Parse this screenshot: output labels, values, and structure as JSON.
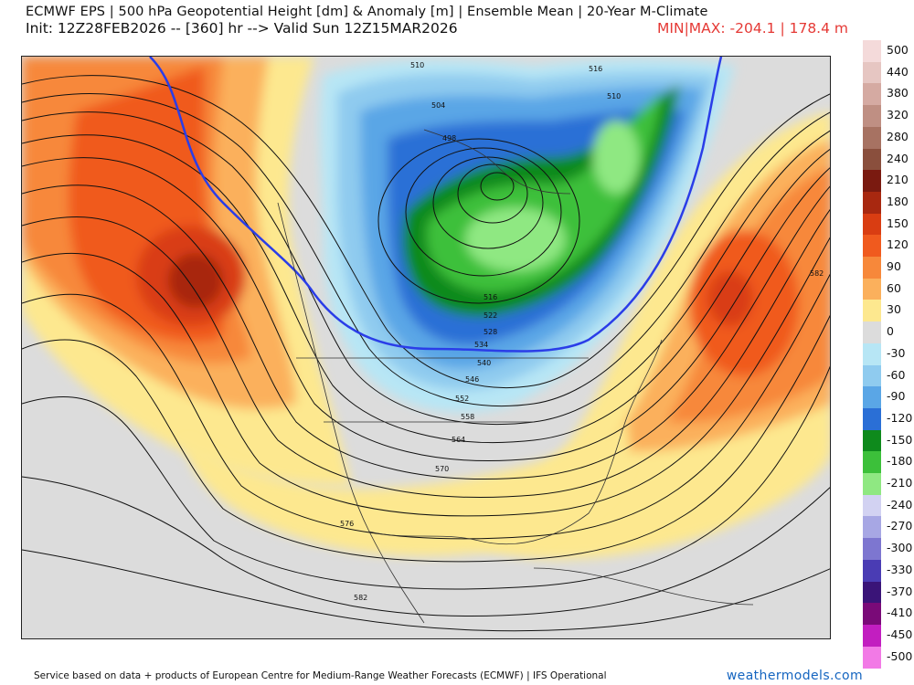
{
  "header": {
    "line1": "ECMWF EPS | 500 hPa Geopotential Height [dm] & Anomaly [m] | Ensemble Mean | 20-Year M-Climate",
    "line2": "Init: 12Z28FEB2026 -- [360] hr --> Valid Sun 12Z15MAR2026",
    "minmax": "MIN|MAX: -204.1 | 178.4 m"
  },
  "legend": {
    "levels": [
      {
        "label": "500",
        "color": "#f4dada"
      },
      {
        "label": "440",
        "color": "#e6c6c2"
      },
      {
        "label": "380",
        "color": "#d5aaa2"
      },
      {
        "label": "320",
        "color": "#bf8f83"
      },
      {
        "label": "280",
        "color": "#a77262"
      },
      {
        "label": "240",
        "color": "#8a4f3d"
      },
      {
        "label": "210",
        "color": "#7a1a10"
      },
      {
        "label": "180",
        "color": "#a82810"
      },
      {
        "label": "150",
        "color": "#d93d12"
      },
      {
        "label": "120",
        "color": "#f05a1e"
      },
      {
        "label": "90",
        "color": "#f7883a"
      },
      {
        "label": "60",
        "color": "#fbb05c"
      },
      {
        "label": "30",
        "color": "#fde88f"
      },
      {
        "label": "0",
        "color": "#dcdcdc"
      },
      {
        "label": "-30",
        "color": "#b7e6f5"
      },
      {
        "label": "-60",
        "color": "#8fcbef"
      },
      {
        "label": "-90",
        "color": "#5aa6e6"
      },
      {
        "label": "-120",
        "color": "#2a6fd6"
      },
      {
        "label": "-150",
        "color": "#0e8a1c"
      },
      {
        "label": "-180",
        "color": "#3cc03a"
      },
      {
        "label": "-210",
        "color": "#8fe882"
      },
      {
        "label": "-240",
        "color": "#d2d2f2"
      },
      {
        "label": "-270",
        "color": "#a7a7e4"
      },
      {
        "label": "-300",
        "color": "#7d76d0"
      },
      {
        "label": "-330",
        "color": "#4a3cb4"
      },
      {
        "label": "-370",
        "color": "#3a1478"
      },
      {
        "label": "-410",
        "color": "#7a0a78"
      },
      {
        "label": "-450",
        "color": "#c21ec0"
      },
      {
        "label": "-500",
        "color": "#f27ae6"
      }
    ]
  },
  "map": {
    "contour_labels": [
      "510",
      "516",
      "510",
      "504",
      "498",
      "516",
      "522",
      "528",
      "534",
      "540",
      "546",
      "552",
      "558",
      "564",
      "570",
      "576",
      "582",
      "582"
    ]
  },
  "footer": {
    "credit": "Service based on data + products of European Centre for Medium-Range Weather Forecasts (ECMWF) | IFS Operational",
    "brand": "weathermodels.com"
  }
}
